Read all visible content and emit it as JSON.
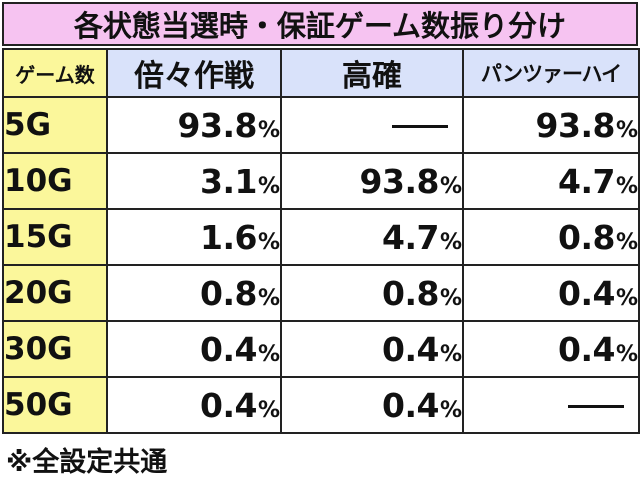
{
  "title": "各状態当選時・保証ゲーム数振り分け",
  "table": {
    "corner_label": "ゲーム数",
    "columns": [
      "倍々作戦",
      "高確",
      "パンツァーハイ"
    ],
    "percent_sign": "%",
    "dash_label": "—",
    "rows": [
      {
        "label": "5G",
        "values": [
          "93.8",
          null,
          "93.8"
        ]
      },
      {
        "label": "10G",
        "values": [
          "3.1",
          "93.8",
          "4.7"
        ]
      },
      {
        "label": "15G",
        "values": [
          "1.6",
          "4.7",
          "0.8"
        ]
      },
      {
        "label": "20G",
        "values": [
          "0.8",
          "0.8",
          "0.4"
        ]
      },
      {
        "label": "30G",
        "values": [
          "0.4",
          "0.4",
          "0.4"
        ]
      },
      {
        "label": "50G",
        "values": [
          "0.4",
          "0.4",
          null
        ]
      }
    ]
  },
  "footnote": "※全設定共通"
}
